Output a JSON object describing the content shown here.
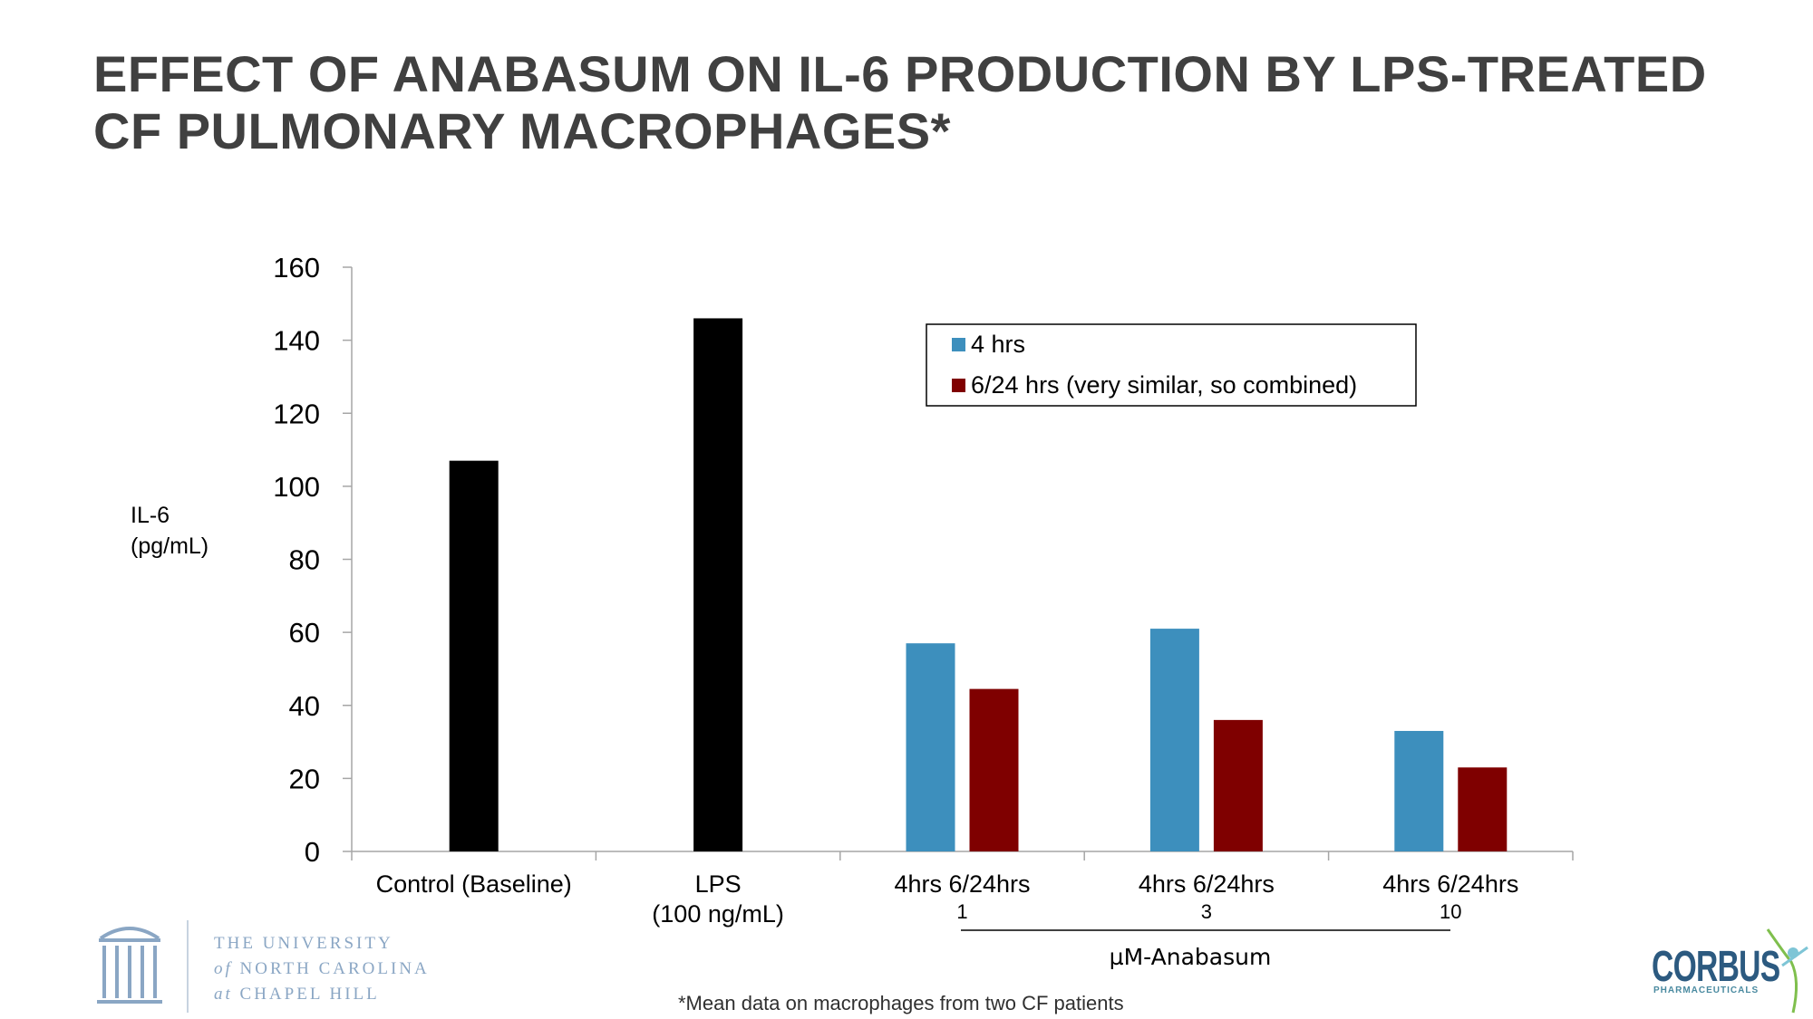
{
  "title": {
    "line1": "EFFECT OF ANABASUM ON IL-6 PRODUCTION BY LPS-TREATED",
    "line2": "CF PULMONARY MACROPHAGES*"
  },
  "chart_data": {
    "type": "bar",
    "ylabel_line1": "IL-6",
    "ylabel_line2": "(pg/mL)",
    "ylim": [
      0,
      160
    ],
    "yticks": [
      0,
      20,
      40,
      60,
      80,
      100,
      120,
      140,
      160
    ],
    "grid": false,
    "legend_position": "top-right",
    "colors": {
      "baseline": "#000000",
      "4 hrs": "#3d8fbd",
      "6/24 hrs": "#7f0000"
    },
    "groups": [
      {
        "label_line1": "Control (Baseline)",
        "label_line2": "",
        "bars": [
          {
            "series": "baseline",
            "value": 107
          }
        ]
      },
      {
        "label_line1": "LPS",
        "label_line2": "(100 ng/mL)",
        "bars": [
          {
            "series": "baseline",
            "value": 146
          }
        ]
      },
      {
        "label_line1": "4hrs  6/24hrs",
        "label_line2": "1",
        "bars": [
          {
            "series": "4 hrs",
            "value": 57
          },
          {
            "series": "6/24 hrs",
            "value": 44.5
          }
        ]
      },
      {
        "label_line1": "4hrs  6/24hrs",
        "label_line2": "3",
        "bars": [
          {
            "series": "4 hrs",
            "value": 61
          },
          {
            "series": "6/24 hrs",
            "value": 36
          }
        ]
      },
      {
        "label_line1": "4hrs  6/24hrs",
        "label_line2": "10",
        "bars": [
          {
            "series": "4 hrs",
            "value": 33
          },
          {
            "series": "6/24 hrs",
            "value": 23
          }
        ]
      }
    ],
    "legend": [
      {
        "series": "4 hrs",
        "label": "4 hrs"
      },
      {
        "series": "6/24 hrs",
        "label": "6/24 hrs (very similar, so combined)"
      }
    ],
    "group_axis_label": "µM-Anabasum"
  },
  "footnote": "*Mean data on macrophages from two CF patients",
  "logos": {
    "unc_line1": "THE UNIVERSITY",
    "unc_line2_italic": "of",
    "unc_line2": "NORTH CAROLINA",
    "unc_line3_italic": "at",
    "unc_line3": "CHAPEL HILL",
    "corbus_name": "CORBUS",
    "corbus_sub": "PHARMACEUTICALS"
  }
}
